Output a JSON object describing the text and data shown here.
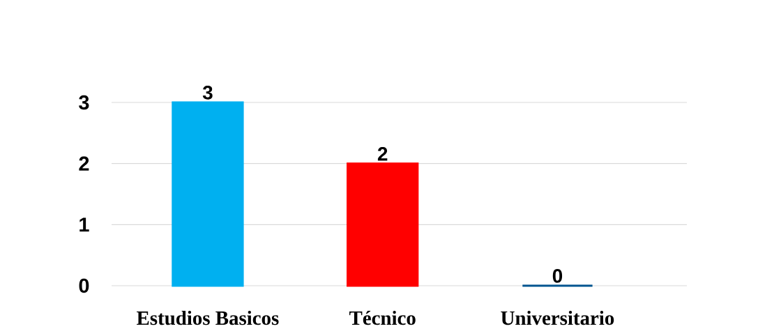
{
  "chart_data": {
    "type": "bar",
    "categories": [
      "Estudios Basicos",
      "Técnico",
      "Universitario"
    ],
    "values": [
      3,
      2,
      0
    ],
    "colors": [
      "#00b0f0",
      "#ff0000",
      "#00558f"
    ],
    "ylim": [
      0,
      3
    ],
    "yticks": [
      0,
      1,
      2,
      3
    ],
    "grid": "y",
    "data_labels": true
  }
}
